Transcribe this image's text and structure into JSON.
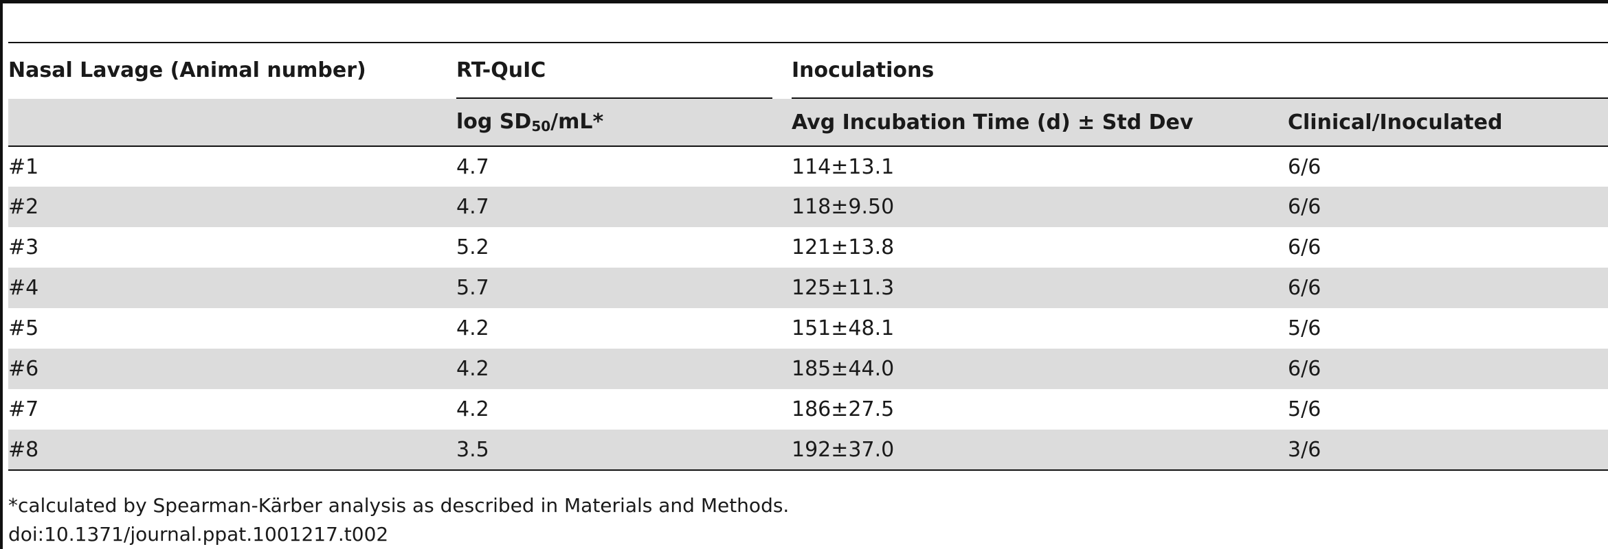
{
  "table": {
    "headers": {
      "col1": "Nasal Lavage (Animal number)",
      "group_rtquic": "RT-QuIC",
      "group_inoculations": "Inoculations",
      "log_sd_prefix": "log SD",
      "log_sd_sub": "50",
      "log_sd_suffix": "/mL*",
      "avg_incubation": "Avg Incubation Time (d) ± Std Dev",
      "clinical": "Clinical/Inoculated"
    },
    "rows": [
      {
        "animal": "#1",
        "log_sd": "4.7",
        "incubation": "114±13.1",
        "clinical": "6/6"
      },
      {
        "animal": "#2",
        "log_sd": "4.7",
        "incubation": "118±9.50",
        "clinical": "6/6"
      },
      {
        "animal": "#3",
        "log_sd": "5.2",
        "incubation": "121±13.8",
        "clinical": "6/6"
      },
      {
        "animal": "#4",
        "log_sd": "5.7",
        "incubation": "125±11.3",
        "clinical": "6/6"
      },
      {
        "animal": "#5",
        "log_sd": "4.2",
        "incubation": "151±48.1",
        "clinical": "5/6"
      },
      {
        "animal": "#6",
        "log_sd": "4.2",
        "incubation": "185±44.0",
        "clinical": "6/6"
      },
      {
        "animal": "#7",
        "log_sd": "4.2",
        "incubation": "186±27.5",
        "clinical": "5/6"
      },
      {
        "animal": "#8",
        "log_sd": "3.5",
        "incubation": "192±37.0",
        "clinical": "3/6"
      }
    ]
  },
  "footnote": "*calculated by Spearman-Kärber analysis as described in Materials and Methods.",
  "doi": "doi:10.1371/journal.ppat.1001217.t002"
}
